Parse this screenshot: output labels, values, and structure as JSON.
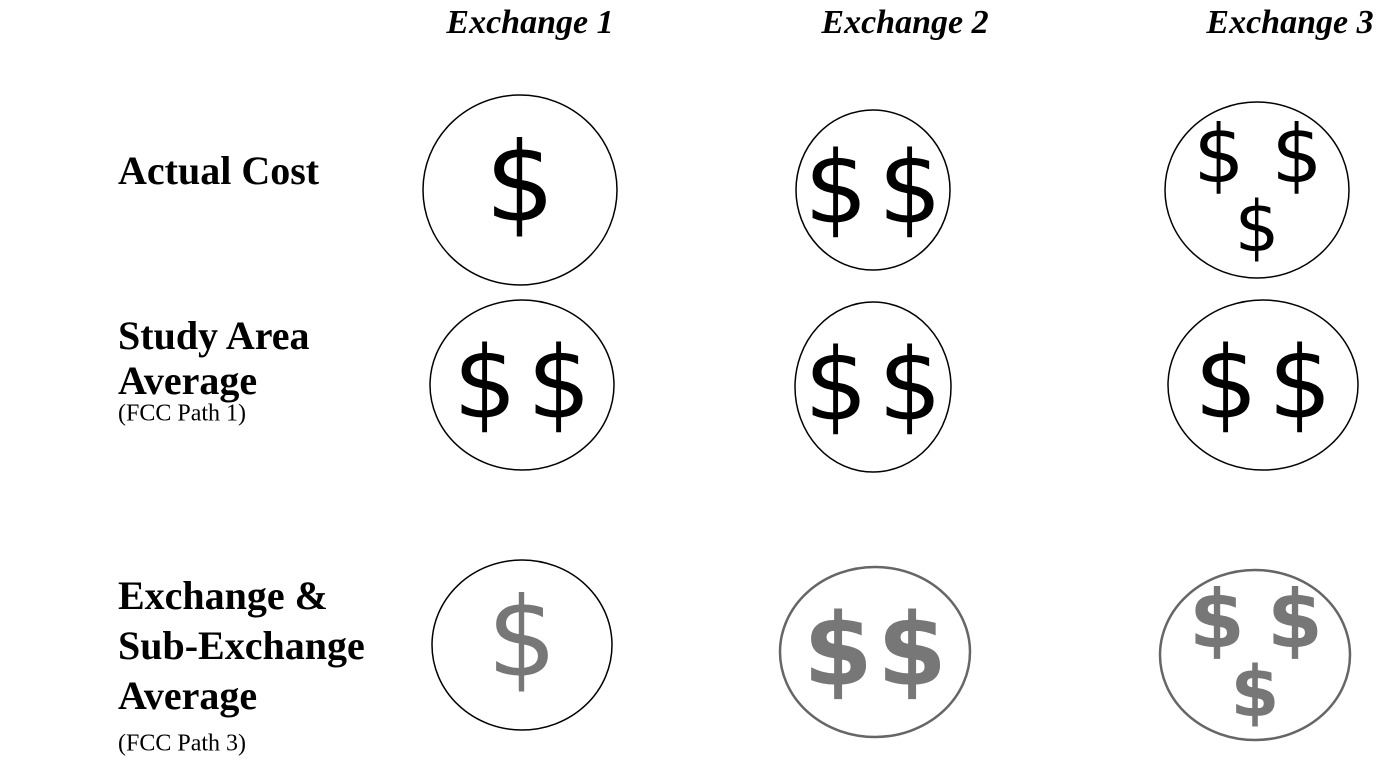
{
  "columns": [
    "Exchange 1",
    "Exchange 2",
    "Exchange 3"
  ],
  "rows": [
    {
      "label": [
        "Actual Cost"
      ],
      "cells": [
        [
          "$"
        ],
        [
          "$",
          "$"
        ],
        [
          "$",
          "$",
          "$"
        ]
      ]
    },
    {
      "label": [
        "Study Area",
        "Average"
      ],
      "note": "(FCC Path 1)",
      "cells": [
        [
          "$",
          "$"
        ],
        [
          "$",
          "$"
        ],
        [
          "$",
          "$"
        ]
      ]
    },
    {
      "label": [
        "Exchange &",
        "Sub-Exchange",
        "Average"
      ],
      "note": "(FCC Path 3)",
      "cells": [
        [
          "$"
        ],
        [
          "$",
          "$"
        ],
        [
          "$",
          "$",
          "$"
        ]
      ]
    }
  ]
}
